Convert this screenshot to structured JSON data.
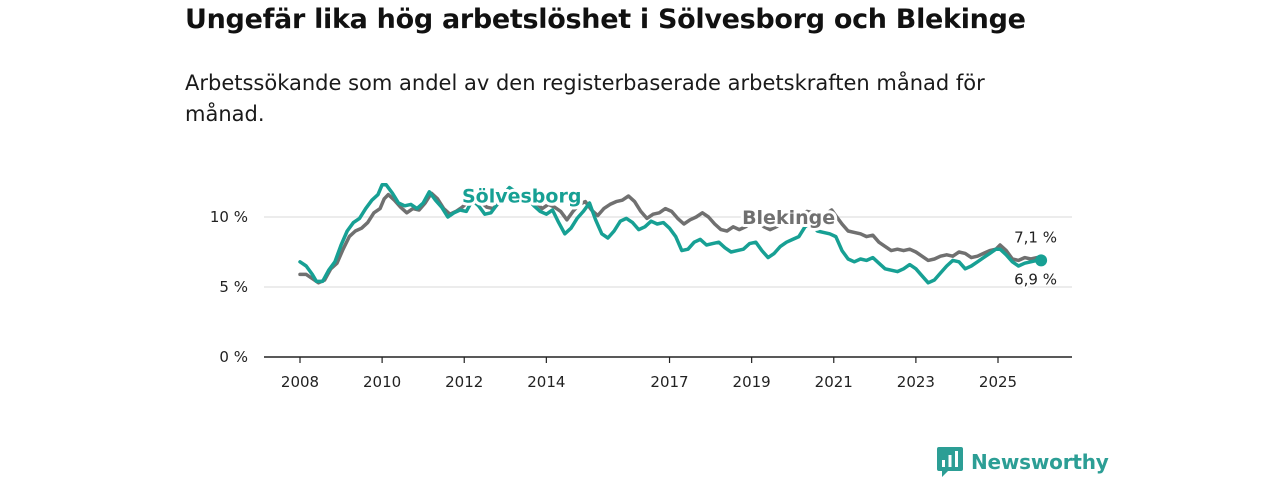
{
  "chart_data": {
    "type": "line",
    "title": "Ungefär lika hög arbetslöshet i Sölvesborg och Blekinge",
    "subtitle": "Arbetssökande som andel av den registerbaserade arbetskraften månad för månad.",
    "xlabel": "",
    "ylabel": "",
    "ylim": [
      0,
      13
    ],
    "xlim": [
      2008,
      2026.4
    ],
    "y_ticks": [
      {
        "value": 0,
        "label": "0 %"
      },
      {
        "value": 5,
        "label": "5 %"
      },
      {
        "value": 10,
        "label": "10 %"
      }
    ],
    "x_ticks": [
      {
        "value": 2008,
        "label": "2008"
      },
      {
        "value": 2010,
        "label": "2010"
      },
      {
        "value": 2012,
        "label": "2012"
      },
      {
        "value": 2014,
        "label": "2014"
      },
      {
        "value": 2017,
        "label": "2017"
      },
      {
        "value": 2019,
        "label": "2019"
      },
      {
        "value": 2021,
        "label": "2021"
      },
      {
        "value": 2023,
        "label": "2023"
      },
      {
        "value": 2025,
        "label": "2025"
      }
    ],
    "series": [
      {
        "name": "Blekinge",
        "color": "#707070",
        "end_label": "7,1 %",
        "points": [
          [
            2008.0,
            5.9
          ],
          [
            2008.15,
            5.9
          ],
          [
            2008.3,
            5.6
          ],
          [
            2008.45,
            5.3
          ],
          [
            2008.6,
            5.5
          ],
          [
            2008.75,
            6.3
          ],
          [
            2008.9,
            6.7
          ],
          [
            2009.05,
            7.7
          ],
          [
            2009.2,
            8.6
          ],
          [
            2009.35,
            9.0
          ],
          [
            2009.5,
            9.2
          ],
          [
            2009.65,
            9.6
          ],
          [
            2009.8,
            10.3
          ],
          [
            2009.95,
            10.6
          ],
          [
            2010.05,
            11.3
          ],
          [
            2010.15,
            11.6
          ],
          [
            2010.3,
            11.2
          ],
          [
            2010.45,
            10.7
          ],
          [
            2010.6,
            10.3
          ],
          [
            2010.75,
            10.6
          ],
          [
            2010.9,
            10.5
          ],
          [
            2011.05,
            11.0
          ],
          [
            2011.2,
            11.7
          ],
          [
            2011.35,
            11.3
          ],
          [
            2011.5,
            10.6
          ],
          [
            2011.65,
            10.2
          ],
          [
            2011.8,
            10.4
          ],
          [
            2011.95,
            10.7
          ],
          [
            2012.1,
            11.1
          ],
          [
            2012.25,
            11.4
          ],
          [
            2012.4,
            11.1
          ],
          [
            2012.55,
            10.7
          ],
          [
            2012.7,
            10.6
          ],
          [
            2012.85,
            11.0
          ],
          [
            2013.0,
            11.6
          ],
          [
            2013.15,
            11.9
          ],
          [
            2013.3,
            11.6
          ],
          [
            2013.45,
            11.4
          ],
          [
            2013.6,
            11.2
          ],
          [
            2013.75,
            11.0
          ],
          [
            2013.9,
            10.6
          ],
          [
            2014.05,
            10.9
          ],
          [
            2014.2,
            10.7
          ],
          [
            2014.35,
            10.4
          ],
          [
            2014.5,
            9.8
          ],
          [
            2014.65,
            10.4
          ],
          [
            2014.8,
            10.9
          ],
          [
            2014.95,
            11.1
          ],
          [
            2015.1,
            10.5
          ],
          [
            2015.25,
            10.1
          ],
          [
            2015.4,
            10.6
          ],
          [
            2015.55,
            10.9
          ],
          [
            2015.7,
            11.1
          ],
          [
            2015.85,
            11.2
          ],
          [
            2016.0,
            11.5
          ],
          [
            2016.15,
            11.1
          ],
          [
            2016.3,
            10.4
          ],
          [
            2016.45,
            9.9
          ],
          [
            2016.6,
            10.2
          ],
          [
            2016.75,
            10.3
          ],
          [
            2016.9,
            10.6
          ],
          [
            2017.05,
            10.4
          ],
          [
            2017.2,
            9.9
          ],
          [
            2017.35,
            9.5
          ],
          [
            2017.5,
            9.8
          ],
          [
            2017.65,
            10.0
          ],
          [
            2017.8,
            10.3
          ],
          [
            2017.95,
            10.0
          ],
          [
            2018.1,
            9.5
          ],
          [
            2018.25,
            9.1
          ],
          [
            2018.4,
            9.0
          ],
          [
            2018.55,
            9.3
          ],
          [
            2018.7,
            9.1
          ],
          [
            2018.85,
            9.3
          ],
          [
            2019.0,
            9.6
          ],
          [
            2019.15,
            9.7
          ],
          [
            2019.3,
            9.3
          ],
          [
            2019.45,
            9.1
          ],
          [
            2019.6,
            9.3
          ],
          [
            2019.75,
            9.6
          ],
          [
            2019.9,
            9.8
          ],
          [
            2020.05,
            10.1
          ],
          [
            2020.2,
            10.2
          ],
          [
            2020.35,
            10.4
          ],
          [
            2020.5,
            10.3
          ],
          [
            2020.65,
            10.1
          ],
          [
            2020.8,
            10.2
          ],
          [
            2020.95,
            10.5
          ],
          [
            2021.05,
            10.1
          ],
          [
            2021.2,
            9.5
          ],
          [
            2021.35,
            9.0
          ],
          [
            2021.5,
            8.9
          ],
          [
            2021.65,
            8.8
          ],
          [
            2021.8,
            8.6
          ],
          [
            2021.95,
            8.7
          ],
          [
            2022.1,
            8.2
          ],
          [
            2022.25,
            7.9
          ],
          [
            2022.4,
            7.6
          ],
          [
            2022.55,
            7.7
          ],
          [
            2022.7,
            7.6
          ],
          [
            2022.85,
            7.7
          ],
          [
            2023.0,
            7.5
          ],
          [
            2023.15,
            7.2
          ],
          [
            2023.3,
            6.9
          ],
          [
            2023.45,
            7.0
          ],
          [
            2023.6,
            7.2
          ],
          [
            2023.75,
            7.3
          ],
          [
            2023.9,
            7.2
          ],
          [
            2024.05,
            7.5
          ],
          [
            2024.2,
            7.4
          ],
          [
            2024.35,
            7.1
          ],
          [
            2024.5,
            7.2
          ],
          [
            2024.65,
            7.4
          ],
          [
            2024.8,
            7.6
          ],
          [
            2024.95,
            7.7
          ],
          [
            2025.05,
            8.0
          ],
          [
            2025.2,
            7.6
          ],
          [
            2025.35,
            7.0
          ],
          [
            2025.5,
            6.9
          ],
          [
            2025.65,
            7.1
          ],
          [
            2025.8,
            7.0
          ],
          [
            2025.95,
            7.1
          ],
          [
            2026.05,
            7.1
          ]
        ]
      },
      {
        "name": "Sölvesborg",
        "color": "#17a094",
        "end_label": "6,9 %",
        "points": [
          [
            2008.0,
            6.8
          ],
          [
            2008.15,
            6.5
          ],
          [
            2008.3,
            5.9
          ],
          [
            2008.4,
            5.4
          ],
          [
            2008.55,
            5.4
          ],
          [
            2008.7,
            6.2
          ],
          [
            2008.85,
            6.8
          ],
          [
            2009.0,
            8.0
          ],
          [
            2009.15,
            9.0
          ],
          [
            2009.3,
            9.6
          ],
          [
            2009.45,
            9.9
          ],
          [
            2009.6,
            10.6
          ],
          [
            2009.75,
            11.2
          ],
          [
            2009.9,
            11.6
          ],
          [
            2010.0,
            12.3
          ],
          [
            2010.1,
            12.3
          ],
          [
            2010.25,
            11.7
          ],
          [
            2010.4,
            11.0
          ],
          [
            2010.55,
            10.8
          ],
          [
            2010.7,
            10.9
          ],
          [
            2010.85,
            10.6
          ],
          [
            2011.0,
            11.0
          ],
          [
            2011.15,
            11.8
          ],
          [
            2011.3,
            11.2
          ],
          [
            2011.45,
            10.7
          ],
          [
            2011.6,
            10.0
          ],
          [
            2011.75,
            10.3
          ],
          [
            2011.9,
            10.5
          ],
          [
            2012.05,
            10.4
          ],
          [
            2012.2,
            11.2
          ],
          [
            2012.35,
            10.8
          ],
          [
            2012.5,
            10.2
          ],
          [
            2012.65,
            10.3
          ],
          [
            2012.8,
            10.9
          ],
          [
            2012.95,
            11.6
          ],
          [
            2013.1,
            12.1
          ],
          [
            2013.25,
            11.8
          ],
          [
            2013.4,
            11.4
          ],
          [
            2013.55,
            11.3
          ],
          [
            2013.7,
            10.8
          ],
          [
            2013.85,
            10.4
          ],
          [
            2014.0,
            10.2
          ],
          [
            2014.15,
            10.5
          ],
          [
            2014.3,
            9.6
          ],
          [
            2014.45,
            8.8
          ],
          [
            2014.6,
            9.2
          ],
          [
            2014.75,
            9.9
          ],
          [
            2014.9,
            10.4
          ],
          [
            2015.05,
            11.0
          ],
          [
            2015.2,
            9.8
          ],
          [
            2015.35,
            8.8
          ],
          [
            2015.5,
            8.5
          ],
          [
            2015.65,
            9.0
          ],
          [
            2015.8,
            9.7
          ],
          [
            2015.95,
            9.9
          ],
          [
            2016.1,
            9.6
          ],
          [
            2016.25,
            9.1
          ],
          [
            2016.4,
            9.3
          ],
          [
            2016.55,
            9.7
          ],
          [
            2016.7,
            9.5
          ],
          [
            2016.85,
            9.6
          ],
          [
            2017.0,
            9.2
          ],
          [
            2017.15,
            8.6
          ],
          [
            2017.3,
            7.6
          ],
          [
            2017.45,
            7.7
          ],
          [
            2017.6,
            8.2
          ],
          [
            2017.75,
            8.4
          ],
          [
            2017.9,
            8.0
          ],
          [
            2018.05,
            8.1
          ],
          [
            2018.2,
            8.2
          ],
          [
            2018.35,
            7.8
          ],
          [
            2018.5,
            7.5
          ],
          [
            2018.65,
            7.6
          ],
          [
            2018.8,
            7.7
          ],
          [
            2018.95,
            8.1
          ],
          [
            2019.1,
            8.2
          ],
          [
            2019.25,
            7.6
          ],
          [
            2019.4,
            7.1
          ],
          [
            2019.55,
            7.4
          ],
          [
            2019.7,
            7.9
          ],
          [
            2019.85,
            8.2
          ],
          [
            2020.0,
            8.4
          ],
          [
            2020.15,
            8.6
          ],
          [
            2020.3,
            9.3
          ],
          [
            2020.45,
            9.6
          ],
          [
            2020.6,
            9.0
          ],
          [
            2020.75,
            8.9
          ],
          [
            2020.9,
            8.8
          ],
          [
            2021.05,
            8.6
          ],
          [
            2021.2,
            7.6
          ],
          [
            2021.35,
            7.0
          ],
          [
            2021.5,
            6.8
          ],
          [
            2021.65,
            7.0
          ],
          [
            2021.8,
            6.9
          ],
          [
            2021.95,
            7.1
          ],
          [
            2022.1,
            6.7
          ],
          [
            2022.25,
            6.3
          ],
          [
            2022.4,
            6.2
          ],
          [
            2022.55,
            6.1
          ],
          [
            2022.7,
            6.3
          ],
          [
            2022.85,
            6.6
          ],
          [
            2023.0,
            6.3
          ],
          [
            2023.15,
            5.8
          ],
          [
            2023.3,
            5.3
          ],
          [
            2023.45,
            5.5
          ],
          [
            2023.6,
            6.0
          ],
          [
            2023.75,
            6.5
          ],
          [
            2023.9,
            6.9
          ],
          [
            2024.05,
            6.8
          ],
          [
            2024.2,
            6.3
          ],
          [
            2024.35,
            6.5
          ],
          [
            2024.5,
            6.8
          ],
          [
            2024.65,
            7.1
          ],
          [
            2024.8,
            7.4
          ],
          [
            2024.95,
            7.7
          ],
          [
            2025.05,
            7.7
          ],
          [
            2025.2,
            7.3
          ],
          [
            2025.35,
            6.8
          ],
          [
            2025.5,
            6.5
          ],
          [
            2025.65,
            6.7
          ],
          [
            2025.8,
            6.8
          ],
          [
            2025.95,
            6.9
          ],
          [
            2026.05,
            6.9
          ]
        ]
      }
    ],
    "line_labels": [
      {
        "series": 1,
        "text": "Sölvesborg",
        "x": 2013.4,
        "y": 11.55
      },
      {
        "series": 0,
        "text": "Blekinge",
        "x": 2019.9,
        "y": 10.0
      }
    ]
  },
  "brand": {
    "name": "Newsworthy",
    "color": "#2c9e95"
  }
}
